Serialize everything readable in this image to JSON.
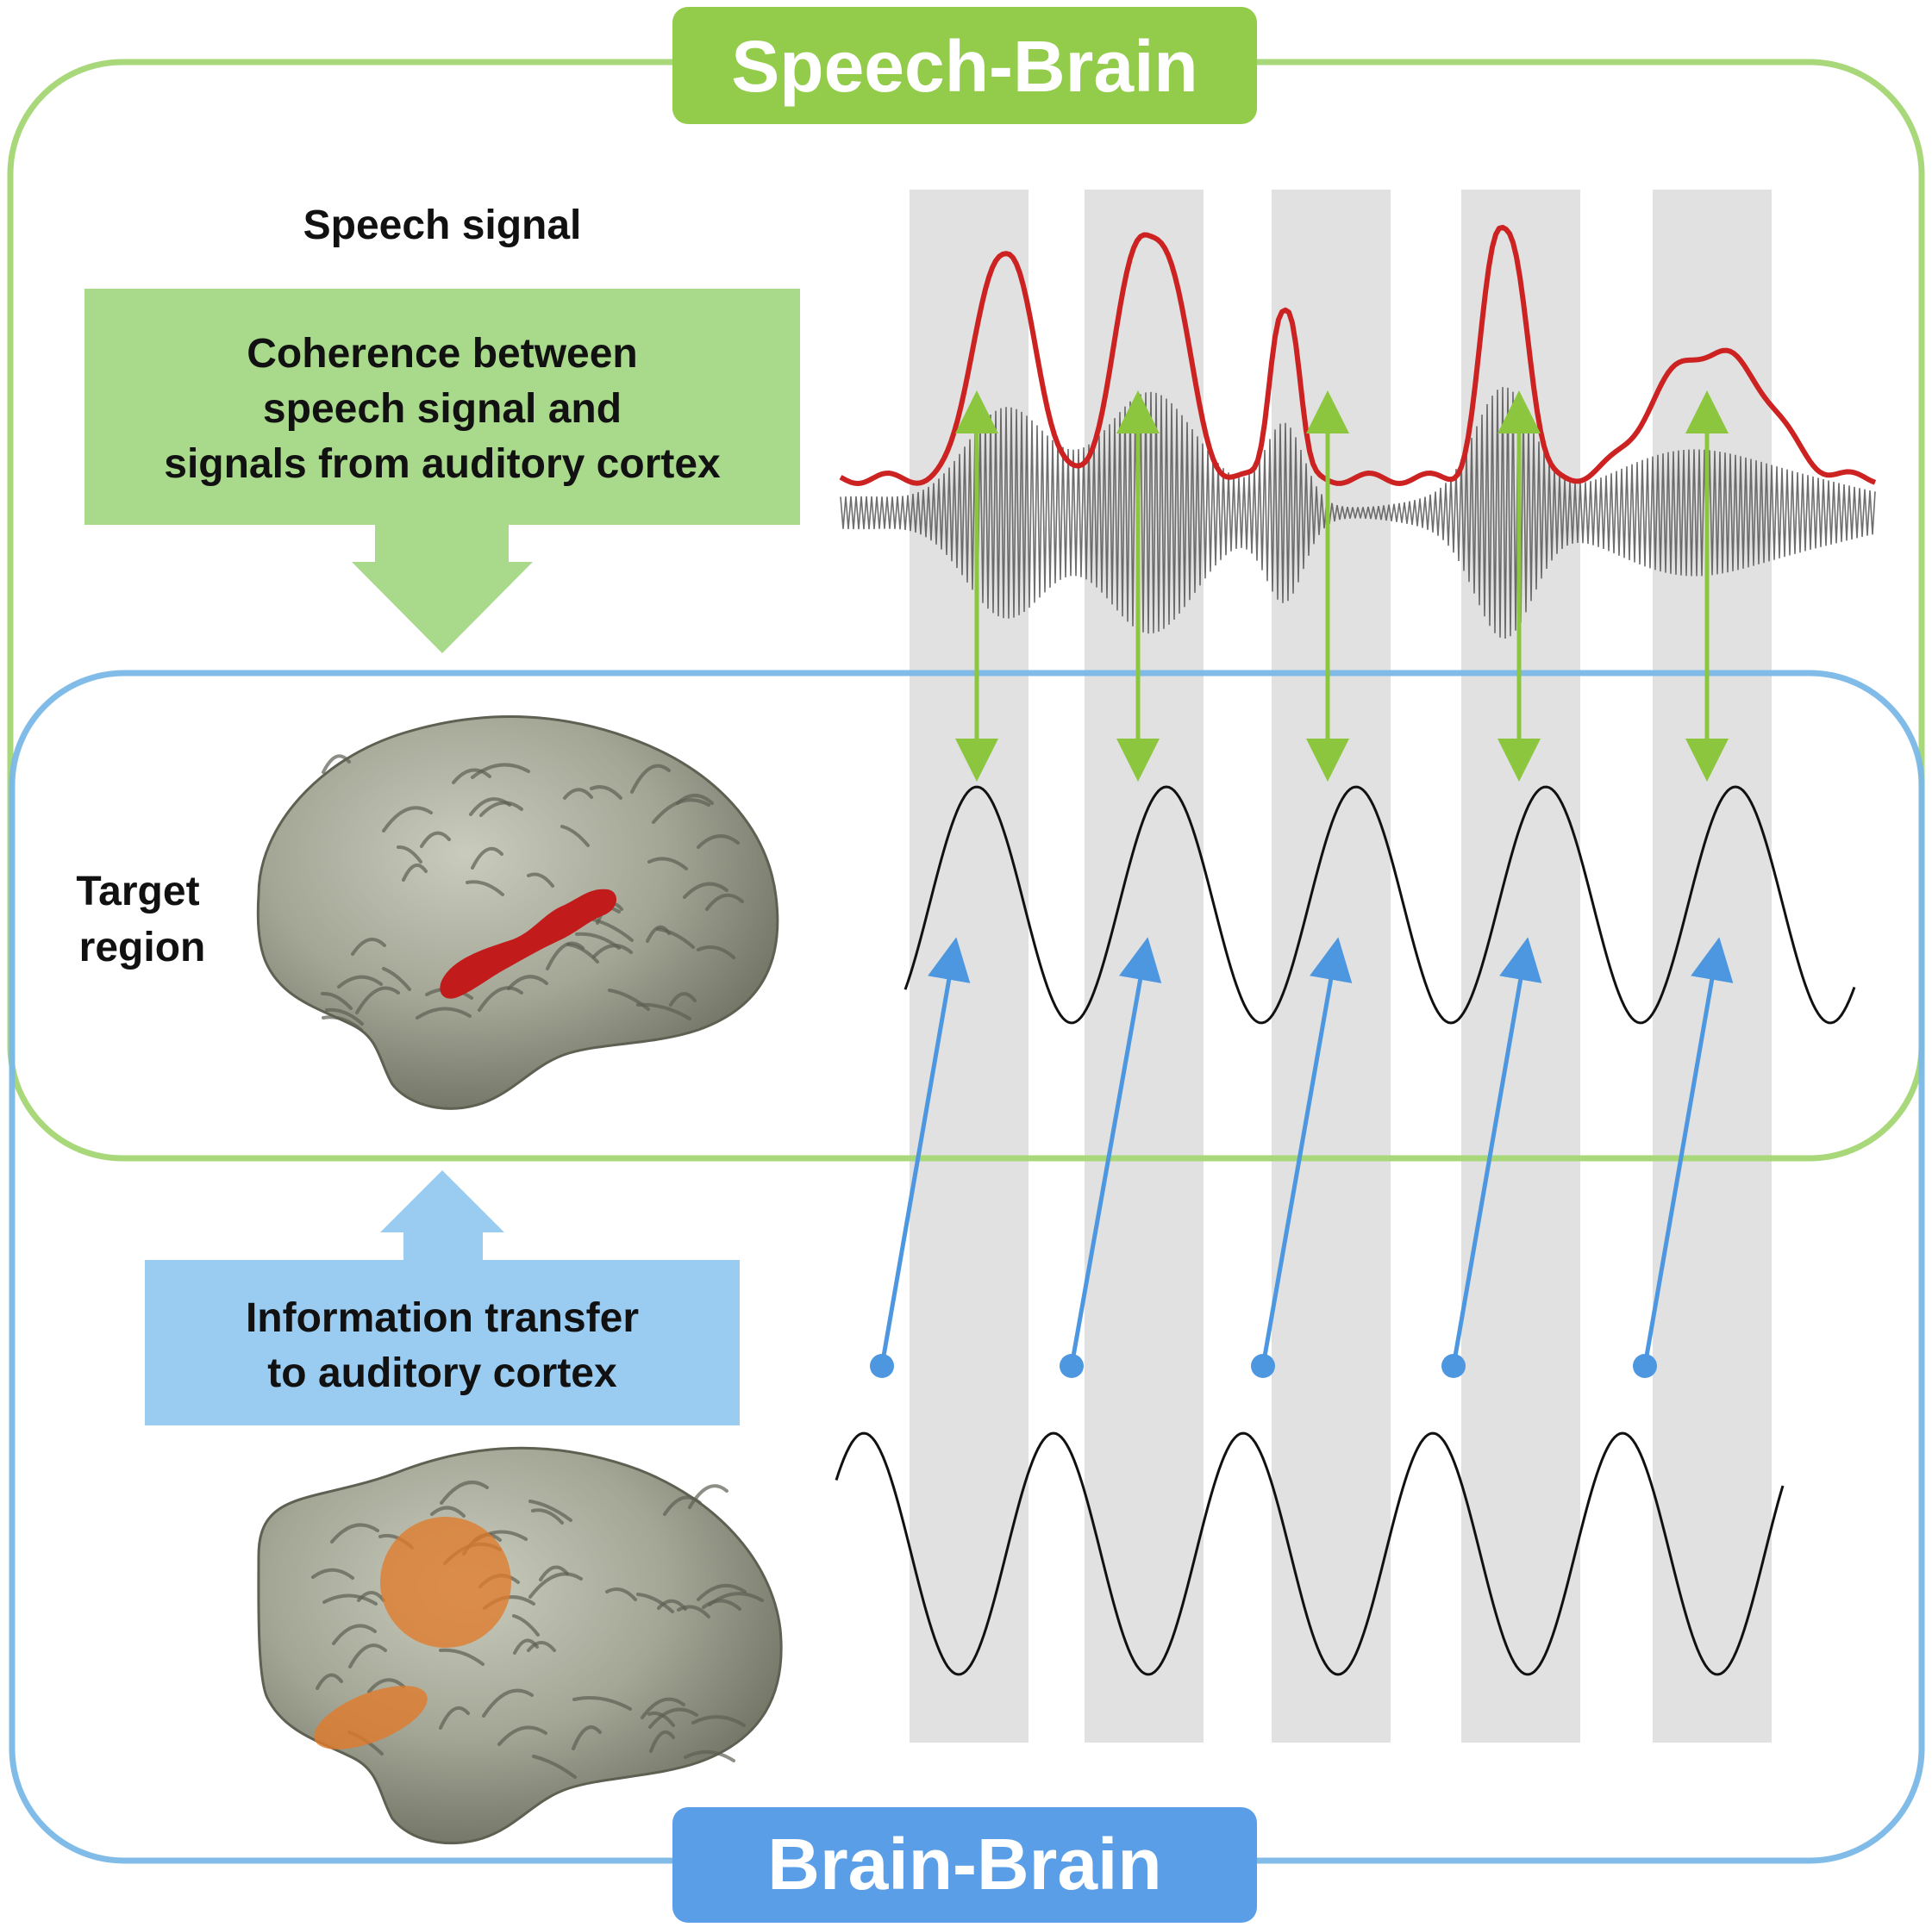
{
  "speech_brain": {
    "title": "Speech-Brain",
    "color": "#92cc4a",
    "frame_color": "#a9d87a"
  },
  "brain_brain": {
    "title": "Brain-Brain",
    "color": "#5b9ee8",
    "frame_color": "#7ab8e8"
  },
  "speech_signal_label": "Speech signal",
  "coherence_box": {
    "lines": [
      "Coherence between",
      "speech signal and",
      "signals from auditory cortex"
    ],
    "color": "#a9d98b"
  },
  "target_region_label": {
    "lines": [
      "Target",
      "region"
    ]
  },
  "information_transfer_box": {
    "lines": [
      "Information transfer",
      "to auditory cortex"
    ],
    "color": "#99ccf0"
  },
  "colors": {
    "gray_band": "#e1e1e1",
    "envelope": "#cc2222",
    "waveform": "#555555",
    "oscillation": "#111111",
    "green_arrow": "#8cc63f",
    "blue_arrow": "#4c97e0",
    "brain_surface": "#8e8f80",
    "target_region": "#c21b1b",
    "source_regions": "#e07b2a"
  },
  "icons": {
    "target_brain": "brain-with-red-region-icon",
    "source_brain": "brain-with-orange-regions-icon"
  }
}
